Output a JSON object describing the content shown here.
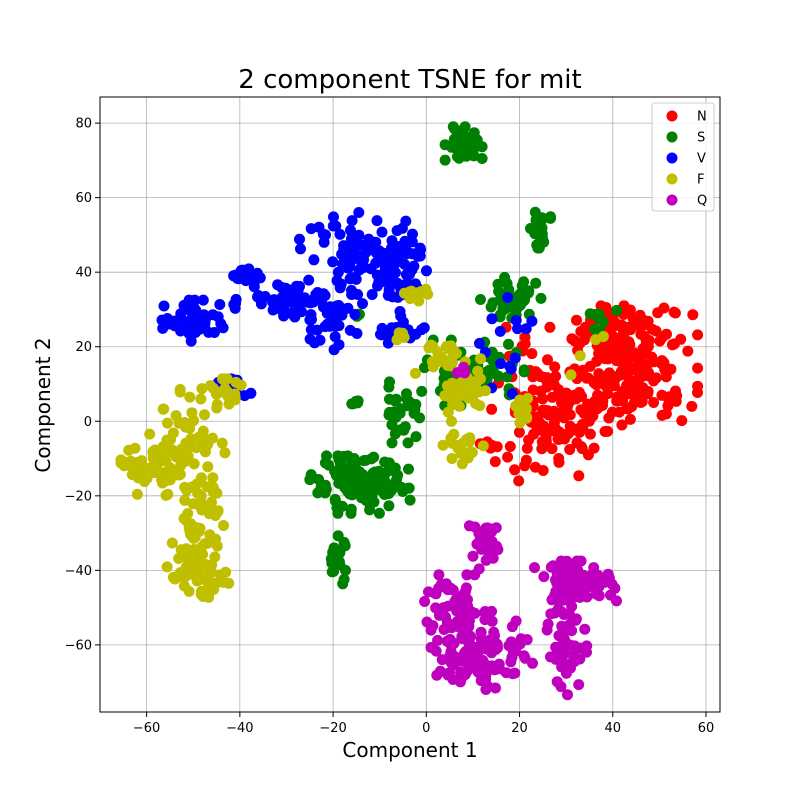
{
  "chart_data": {
    "type": "scatter",
    "title": "2 component TSNE for mit",
    "xlabel": "Component 1",
    "ylabel": "Component 2",
    "xlim": [
      -70,
      63
    ],
    "ylim": [
      -78,
      87
    ],
    "xticks": [
      -60,
      -40,
      -20,
      0,
      20,
      40,
      60
    ],
    "yticks": [
      -60,
      -40,
      -20,
      0,
      20,
      40,
      60,
      80
    ],
    "grid": true,
    "legend_position": "top-right",
    "series": [
      {
        "name": "N",
        "color": "#ff0000",
        "clusters": [
          {
            "x": 45,
            "y": 15,
            "sx": 6,
            "sy": 7,
            "n": 170
          },
          {
            "x": 33,
            "y": 5,
            "sx": 5,
            "sy": 6,
            "n": 60
          },
          {
            "x": 25,
            "y": -5,
            "sx": 5,
            "sy": 5,
            "n": 50
          },
          {
            "x": 38,
            "y": 25,
            "sx": 4,
            "sy": 3,
            "n": 35
          },
          {
            "x": 22,
            "y": 12,
            "sx": 4,
            "sy": 6,
            "n": 35
          },
          {
            "x": 13,
            "y": -6,
            "sx": 1,
            "sy": 1,
            "n": 4
          }
        ]
      },
      {
        "name": "S",
        "color": "#008000",
        "clusters": [
          {
            "x": 8,
            "y": 74,
            "sx": 1.8,
            "sy": 3,
            "n": 40
          },
          {
            "x": 24,
            "y": 52,
            "sx": 1.2,
            "sy": 2.5,
            "n": 22
          },
          {
            "x": 18,
            "y": 32,
            "sx": 3,
            "sy": 3,
            "n": 50
          },
          {
            "x": 10,
            "y": 13,
            "sx": 5,
            "sy": 4,
            "n": 60
          },
          {
            "x": -5,
            "y": 3,
            "sx": 2,
            "sy": 4,
            "n": 30
          },
          {
            "x": -14,
            "y": -17,
            "sx": 5,
            "sy": 3.5,
            "n": 130
          },
          {
            "x": -19,
            "y": -37,
            "sx": 1,
            "sy": 3,
            "n": 25
          },
          {
            "x": -16,
            "y": 5,
            "sx": 0.8,
            "sy": 0.6,
            "n": 5
          },
          {
            "x": 38,
            "y": 28,
            "sx": 2,
            "sy": 2,
            "n": 8
          },
          {
            "x": -15,
            "y": 28,
            "sx": 1,
            "sy": 1,
            "n": 3
          }
        ]
      },
      {
        "name": "V",
        "color": "#0000ff",
        "clusters": [
          {
            "x": -14,
            "y": 45,
            "sx": 6,
            "sy": 5,
            "n": 90
          },
          {
            "x": -5,
            "y": 40,
            "sx": 3,
            "sy": 6,
            "n": 50
          },
          {
            "x": -30,
            "y": 33,
            "sx": 5,
            "sy": 2.5,
            "n": 50
          },
          {
            "x": -20,
            "y": 28,
            "sx": 3,
            "sy": 4,
            "n": 40
          },
          {
            "x": -49,
            "y": 27,
            "sx": 3.5,
            "sy": 2.5,
            "n": 55
          },
          {
            "x": -39,
            "y": 39,
            "sx": 1.5,
            "sy": 1.2,
            "n": 15
          },
          {
            "x": -42,
            "y": 9,
            "sx": 2,
            "sy": 1.5,
            "n": 15
          },
          {
            "x": -5,
            "y": 24,
            "sx": 3,
            "sy": 2,
            "n": 25
          },
          {
            "x": 18,
            "y": 20,
            "sx": 3,
            "sy": 6,
            "n": 15
          }
        ]
      },
      {
        "name": "F",
        "color": "#bfbf00",
        "clusters": [
          {
            "x": -60,
            "y": -13,
            "sx": 2.5,
            "sy": 3,
            "n": 40
          },
          {
            "x": -52,
            "y": -8,
            "sx": 4,
            "sy": 6,
            "n": 70
          },
          {
            "x": -49,
            "y": -30,
            "sx": 2.5,
            "sy": 6,
            "n": 50
          },
          {
            "x": -49,
            "y": -41,
            "sx": 3,
            "sy": 3,
            "n": 50
          },
          {
            "x": -44,
            "y": 7,
            "sx": 4,
            "sy": 2,
            "n": 25
          },
          {
            "x": 8,
            "y": 8,
            "sx": 3,
            "sy": 4,
            "n": 40
          },
          {
            "x": 8,
            "y": -7,
            "sx": 2,
            "sy": 2,
            "n": 18
          },
          {
            "x": 3,
            "y": 18,
            "sx": 2.5,
            "sy": 3,
            "n": 18
          },
          {
            "x": -3,
            "y": 34,
            "sx": 1.5,
            "sy": 1,
            "n": 10
          },
          {
            "x": -5,
            "y": 23,
            "sx": 1,
            "sy": 1,
            "n": 4
          },
          {
            "x": 21,
            "y": 1,
            "sx": 1,
            "sy": 3,
            "n": 10
          },
          {
            "x": 36,
            "y": 18,
            "sx": 3,
            "sy": 3,
            "n": 4
          }
        ]
      },
      {
        "name": "Q",
        "color": "#bf00bf",
        "clusters": [
          {
            "x": 32,
            "y": -43,
            "sx": 4,
            "sy": 2.5,
            "n": 90
          },
          {
            "x": 30,
            "y": -58,
            "sx": 2,
            "sy": 7,
            "n": 50
          },
          {
            "x": 12,
            "y": -62,
            "sx": 5,
            "sy": 5,
            "n": 110
          },
          {
            "x": 6,
            "y": -50,
            "sx": 3,
            "sy": 4,
            "n": 50
          },
          {
            "x": 13,
            "y": -33,
            "sx": 2,
            "sy": 3,
            "n": 30
          },
          {
            "x": 8,
            "y": 13,
            "sx": 1,
            "sy": 1,
            "n": 3
          }
        ]
      }
    ]
  }
}
